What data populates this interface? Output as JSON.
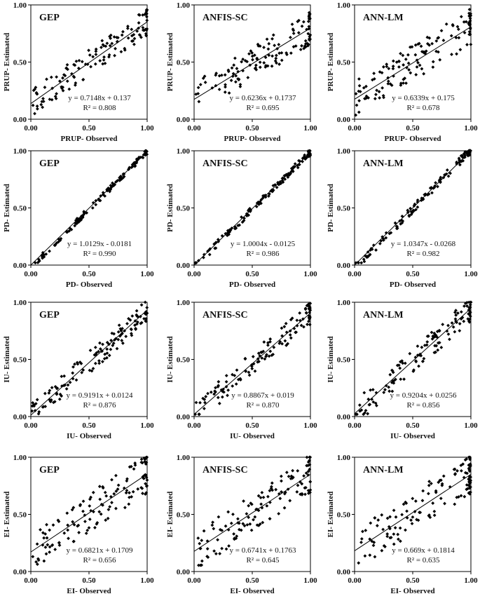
{
  "chart_data": [
    {
      "type": "scatter",
      "model": "GEP",
      "xlabel": "PRUP- Observed",
      "ylabel": "PRUP- Estimated",
      "equation": "y = 0.7148x + 0.137",
      "r2": "R² = 0.808",
      "slope": 0.7148,
      "intercept": 0.137,
      "xlim": [
        0,
        1
      ],
      "ylim": [
        0,
        1
      ],
      "ticks": [
        "0.00",
        "0.50",
        "1.00"
      ],
      "seed": 11,
      "spread": 0.12
    },
    {
      "type": "scatter",
      "model": "ANFIS-SC",
      "xlabel": "PRUP- Observed",
      "ylabel": "PRUP- Estimated",
      "equation": "y = 0.6236x + 0.1737",
      "r2": "R² = 0.695",
      "slope": 0.6236,
      "intercept": 0.1737,
      "xlim": [
        0,
        1
      ],
      "ylim": [
        0,
        1
      ],
      "ticks": [
        "0.00",
        "0.50",
        "1.00"
      ],
      "seed": 12,
      "spread": 0.15
    },
    {
      "type": "scatter",
      "model": "ANN-LM",
      "xlabel": "PRUP- Observed",
      "ylabel": "PRUP- Estimated",
      "equation": "y = 0.6339x + 0.175",
      "r2": "R² = 0.678",
      "slope": 0.6339,
      "intercept": 0.175,
      "xlim": [
        0,
        1
      ],
      "ylim": [
        0,
        1
      ],
      "ticks": [
        "0.00",
        "0.50",
        "1.00"
      ],
      "seed": 13,
      "spread": 0.16
    },
    {
      "type": "scatter",
      "model": "GEP",
      "xlabel": "PD- Observed",
      "ylabel": "PD- Estimated",
      "equation": "y = 1.0129x - 0.0181",
      "r2": "R² = 0.990",
      "slope": 1.0129,
      "intercept": -0.0181,
      "xlim": [
        0,
        1
      ],
      "ylim": [
        0,
        1
      ],
      "ticks": [
        "0.00",
        "0.50",
        "1.00"
      ],
      "seed": 21,
      "spread": 0.025
    },
    {
      "type": "scatter",
      "model": "ANFIS-SC",
      "xlabel": "PD- Observed",
      "ylabel": "PD- Estimated",
      "equation": "y = 1.0004x - 0.0125",
      "r2": "R² = 0.986",
      "slope": 1.0004,
      "intercept": -0.0125,
      "xlim": [
        0,
        1
      ],
      "ylim": [
        0,
        1
      ],
      "ticks": [
        "0.00",
        "0.50",
        "1.00"
      ],
      "seed": 22,
      "spread": 0.03
    },
    {
      "type": "scatter",
      "model": "ANN-LM",
      "xlabel": "PD- Observed",
      "ylabel": "PD- Estimated",
      "equation": "y = 1.0347x - 0.0268",
      "r2": "R² = 0.982",
      "slope": 1.0347,
      "intercept": -0.0268,
      "xlim": [
        0,
        1
      ],
      "ylim": [
        0,
        1
      ],
      "ticks": [
        "0.00",
        "0.50",
        "1.00"
      ],
      "seed": 23,
      "spread": 0.035
    },
    {
      "type": "scatter",
      "model": "GEP",
      "xlabel": "IU- Observed",
      "ylabel": "IU- Estimated",
      "equation": "y = 0.9191x + 0.0124",
      "r2": "R² = 0.876",
      "slope": 0.9191,
      "intercept": 0.0124,
      "xlim": [
        0,
        1
      ],
      "ylim": [
        0,
        1
      ],
      "ticks": [
        "0.00",
        "0.50",
        "1.00"
      ],
      "seed": 31,
      "spread": 0.1
    },
    {
      "type": "scatter",
      "model": "ANFIS-SC",
      "xlabel": "IU- Observed",
      "ylabel": "IU- Estimated",
      "equation": "y = 0.8867x + 0.019",
      "r2": "R² = 0.870",
      "slope": 0.8867,
      "intercept": 0.019,
      "xlim": [
        0,
        1
      ],
      "ylim": [
        0,
        1
      ],
      "ticks": [
        "0.00",
        "0.50",
        "1.00"
      ],
      "seed": 32,
      "spread": 0.1
    },
    {
      "type": "scatter",
      "model": "ANN-LM",
      "xlabel": "IU- Observed",
      "ylabel": "IU- Estimated",
      "equation": "y = 0.9204x + 0.0256",
      "r2": "R² = 0.856",
      "slope": 0.9204,
      "intercept": 0.0256,
      "xlim": [
        0,
        1
      ],
      "ylim": [
        0,
        1
      ],
      "ticks": [
        "0.00",
        "0.50",
        "1.00"
      ],
      "seed": 33,
      "spread": 0.11
    },
    {
      "type": "scatter",
      "model": "GEP",
      "xlabel": "EI- Observed",
      "ylabel": "EI- Estimated",
      "equation": "y = 0.6821x + 0.1709",
      "r2": "R² = 0.656",
      "slope": 0.6821,
      "intercept": 0.1709,
      "xlim": [
        0,
        1
      ],
      "ylim": [
        0,
        1
      ],
      "ticks": [
        "0.00",
        "0.50",
        "1.00"
      ],
      "seed": 41,
      "spread": 0.17
    },
    {
      "type": "scatter",
      "model": "ANFIS-SC",
      "xlabel": "EI- Observed",
      "ylabel": "EI- Estimated",
      "equation": "y = 0.6741x + 0.1763",
      "r2": "R² = 0.645",
      "slope": 0.6741,
      "intercept": 0.1763,
      "xlim": [
        0,
        1
      ],
      "ylim": [
        0,
        1
      ],
      "ticks": [
        "0.00",
        "0.50",
        "1.00"
      ],
      "seed": 42,
      "spread": 0.17
    },
    {
      "type": "scatter",
      "model": "ANN-LM",
      "xlabel": "EI- Observed",
      "ylabel": "EI- Estimated",
      "equation": "y = 0.669x + 0.1814",
      "r2": "R² = 0.635",
      "slope": 0.669,
      "intercept": 0.1814,
      "xlim": [
        0,
        1
      ],
      "ylim": [
        0,
        1
      ],
      "ticks": [
        "0.00",
        "0.50",
        "1.00"
      ],
      "seed": 43,
      "spread": 0.18
    }
  ],
  "colors": {
    "marker": "#000000",
    "axis": "#000000"
  }
}
